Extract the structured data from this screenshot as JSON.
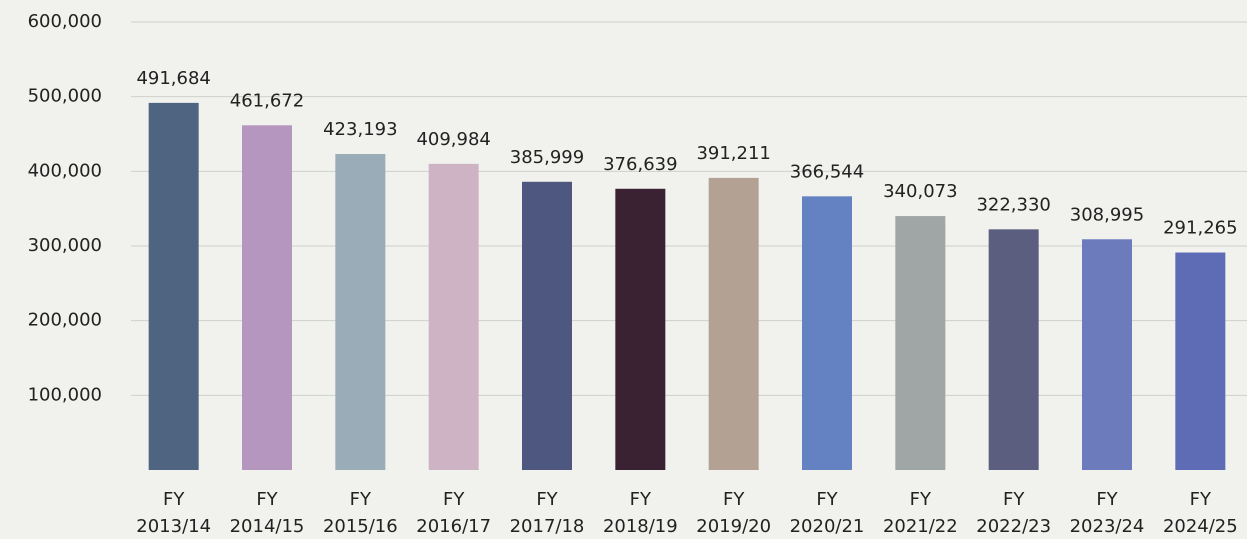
{
  "chart_data": {
    "type": "bar",
    "categories": [
      "FY 2013/14",
      "FY 2014/15",
      "FY 2015/16",
      "FY 2016/17",
      "FY 2017/18",
      "FY 2018/19",
      "FY 2019/20",
      "FY 2020/21",
      "FY 2021/22",
      "FY 2022/23",
      "FY 2023/24",
      "FY 2024/25"
    ],
    "values": [
      491684,
      461672,
      423193,
      409984,
      385999,
      376639,
      391211,
      366544,
      340073,
      322330,
      308995,
      291265
    ],
    "value_labels": [
      "491,684",
      "461,672",
      "423,193",
      "409,984",
      "385,999",
      "376,639",
      "391,211",
      "366,544",
      "340,073",
      "322,330",
      "308,995",
      "291,265"
    ],
    "colors": [
      "#4f6480",
      "#b596bf",
      "#9aacb8",
      "#cdb3c3",
      "#4d577f",
      "#3a2233",
      "#b3a293",
      "#6482c2",
      "#a0a5a5",
      "#5c5e80",
      "#6b7bbc",
      "#5e6bb5"
    ],
    "ylim": [
      0,
      600000
    ],
    "yticks": [
      {
        "value": 100000,
        "label": "100,000"
      },
      {
        "value": 200000,
        "label": "200,000"
      },
      {
        "value": 300000,
        "label": "300,000"
      },
      {
        "value": 400000,
        "label": "400,000"
      },
      {
        "value": 500000,
        "label": "500,000"
      },
      {
        "value": 600000,
        "label": "600,000"
      }
    ],
    "grid": true
  }
}
